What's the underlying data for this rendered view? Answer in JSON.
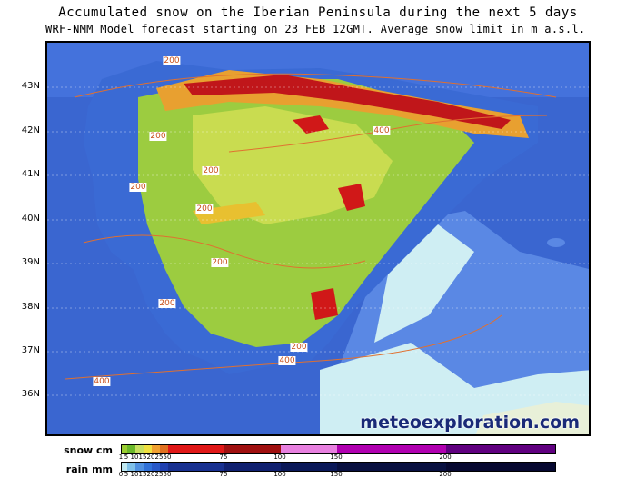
{
  "header": {
    "title": "Accumulated snow on the Iberian Peninsula during the next 5 days",
    "subtitle": "WRF-NMM Model forecast starting on 23 FEB 12GMT.  Average snow limit in m a.s.l."
  },
  "map": {
    "latitude_labels": [
      "43N",
      "42N",
      "41N",
      "40N",
      "39N",
      "38N",
      "37N",
      "36N"
    ],
    "snow_limit_labels": [
      "200",
      "200",
      "200",
      "200",
      "200",
      "200",
      "200",
      "200",
      "400",
      "400",
      "400"
    ],
    "watermark": "meteoexploration.com"
  },
  "legend": {
    "snow": {
      "label": "snow cm",
      "ticks": [
        "1",
        "5",
        "10",
        "15",
        "20",
        "25",
        "50",
        "75",
        "100",
        "150",
        "200"
      ],
      "colors": [
        "#9acd32",
        "#6ab82a",
        "#c8e060",
        "#f0e040",
        "#f0a030",
        "#e07020",
        "#e01818",
        "#a01010",
        "#e880e0",
        "#b000b0",
        "#600080"
      ]
    },
    "rain": {
      "label": "rain mm",
      "ticks": [
        "0",
        "5",
        "10",
        "15",
        "20",
        "25",
        "50",
        "75",
        "100",
        "150",
        "200"
      ],
      "colors": [
        "#c0e8f0",
        "#80c0e8",
        "#5090e0",
        "#3070d8",
        "#2858c8",
        "#2040b0",
        "#183090",
        "#102070",
        "#0a1858",
        "#081040",
        "#060830"
      ]
    }
  }
}
